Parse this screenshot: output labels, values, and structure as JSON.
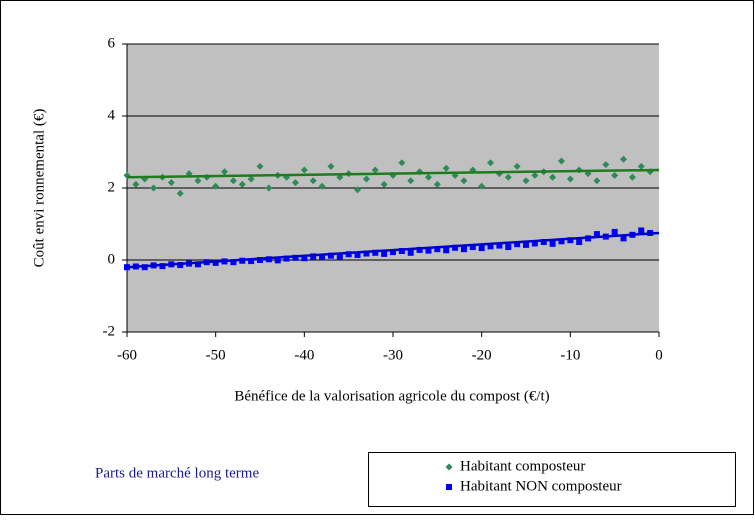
{
  "chart_data": {
    "type": "scatter",
    "x_label": "Bénéfice de la valorisation agricole du compost  (€/t)",
    "y_label": "Coût envi ronnemental (€)",
    "annotation": "Parts de marché long terme",
    "xlim": [
      -60,
      0
    ],
    "xticks": [
      -60,
      -50,
      -40,
      -30,
      -20,
      -10,
      0
    ],
    "ylim": [
      -2,
      6
    ],
    "yticks": [
      -2,
      0,
      2,
      4,
      6
    ],
    "grid": true,
    "legend": "bottom-right",
    "x": [
      -60,
      -59,
      -58,
      -57,
      -56,
      -55,
      -54,
      -53,
      -52,
      -51,
      -50,
      -49,
      -48,
      -47,
      -46,
      -45,
      -44,
      -43,
      -42,
      -41,
      -40,
      -39,
      -38,
      -37,
      -36,
      -35,
      -34,
      -33,
      -32,
      -31,
      -30,
      -29,
      -28,
      -27,
      -26,
      -25,
      -24,
      -23,
      -22,
      -21,
      -20,
      -19,
      -18,
      -17,
      -16,
      -15,
      -14,
      -13,
      -12,
      -11,
      -10,
      -9,
      -8,
      -7,
      -6,
      -5,
      -4,
      -3,
      -2,
      -1
    ],
    "series": [
      {
        "name": "Habitant composteur",
        "color": "#2e8b57",
        "marker": "diamond",
        "values": [
          2.35,
          2.1,
          2.25,
          2.0,
          2.3,
          2.15,
          1.85,
          2.4,
          2.2,
          2.3,
          2.05,
          2.45,
          2.2,
          2.1,
          2.25,
          2.6,
          2.0,
          2.35,
          2.3,
          2.15,
          2.5,
          2.2,
          2.05,
          2.6,
          2.3,
          2.4,
          1.95,
          2.25,
          2.5,
          2.1,
          2.35,
          2.7,
          2.2,
          2.45,
          2.3,
          2.1,
          2.55,
          2.35,
          2.2,
          2.5,
          2.05,
          2.7,
          2.4,
          2.3,
          2.6,
          2.2,
          2.35,
          2.45,
          2.3,
          2.75,
          2.25,
          2.5,
          2.4,
          2.2,
          2.65,
          2.35,
          2.8,
          2.3,
          2.6,
          2.45
        ],
        "trend": {
          "color": "#1e7b1e",
          "x": [
            -60,
            0
          ],
          "values": [
            2.3,
            2.5
          ]
        }
      },
      {
        "name": "Habitant NON composteur",
        "color": "#0000ff",
        "marker": "square",
        "values": [
          -0.2,
          -0.18,
          -0.2,
          -0.15,
          -0.17,
          -0.12,
          -0.14,
          -0.1,
          -0.12,
          -0.06,
          -0.08,
          -0.04,
          -0.06,
          -0.02,
          -0.03,
          0.0,
          0.02,
          -0.01,
          0.04,
          0.06,
          0.05,
          0.1,
          0.08,
          0.12,
          0.1,
          0.16,
          0.14,
          0.18,
          0.2,
          0.17,
          0.22,
          0.25,
          0.2,
          0.28,
          0.26,
          0.3,
          0.27,
          0.34,
          0.3,
          0.36,
          0.33,
          0.38,
          0.4,
          0.36,
          0.44,
          0.42,
          0.46,
          0.5,
          0.45,
          0.52,
          0.55,
          0.5,
          0.6,
          0.72,
          0.65,
          0.78,
          0.6,
          0.7,
          0.82,
          0.75
        ],
        "trend": {
          "color": "#0000cc",
          "x": [
            -60,
            0
          ],
          "values": [
            -0.2,
            0.75
          ]
        }
      }
    ]
  }
}
